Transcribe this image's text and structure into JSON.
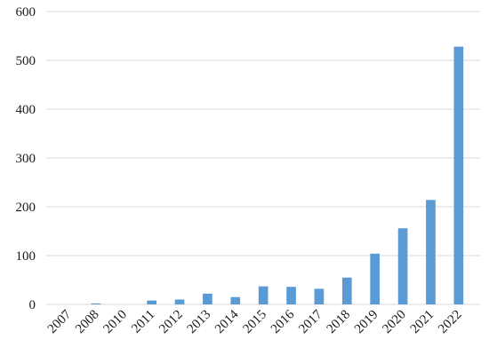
{
  "chart_data": {
    "type": "bar",
    "title": "",
    "xlabel": "",
    "ylabel": "",
    "categories": [
      "2007",
      "2008",
      "2010",
      "2011",
      "2012",
      "2013",
      "2014",
      "2015",
      "2016",
      "2017",
      "2018",
      "2019",
      "2020",
      "2021",
      "2022"
    ],
    "values": [
      0,
      2,
      0,
      8,
      10,
      22,
      15,
      37,
      36,
      32,
      55,
      104,
      156,
      214,
      528
    ],
    "ylim": [
      0,
      600
    ],
    "yticks": [
      0,
      100,
      200,
      300,
      400,
      500,
      600
    ],
    "ytick_labels": [
      "0",
      "100",
      "200",
      "300",
      "400",
      "500",
      "600"
    ],
    "grid": true,
    "legend": "none",
    "bar_color": "#5b9bd5",
    "grid_color": "#d9d9d9",
    "text_color": "#1a1a1a"
  }
}
